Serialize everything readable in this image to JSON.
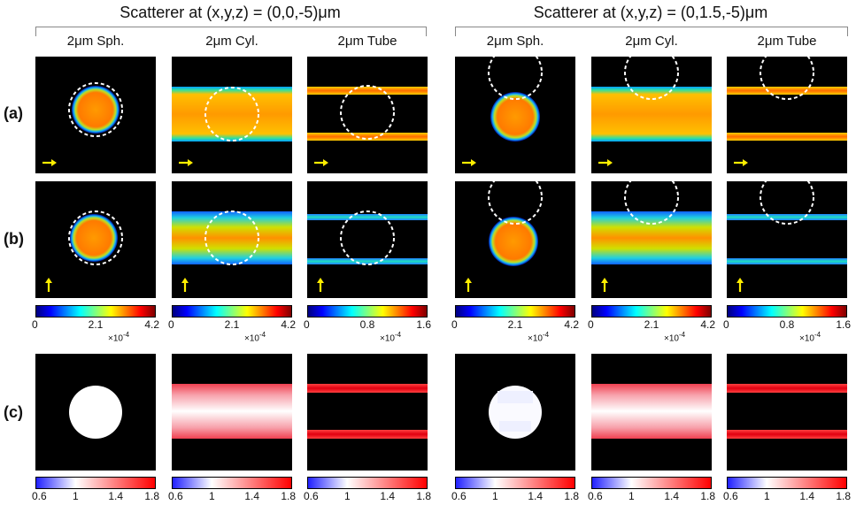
{
  "groups": [
    {
      "title": "Scatterer at (x,y,z) = (0,0,-5)μm"
    },
    {
      "title": "Scatterer at (x,y,z) = (0,1.5,-5)μm"
    }
  ],
  "columns": [
    "2μm Sph.",
    "2μm Cyl.",
    "2μm Tube",
    "2μm Sph.",
    "2μm Cyl.",
    "2μm Tube"
  ],
  "rows": [
    "(a)",
    "(b)",
    "(c)"
  ],
  "jet_colorbars": [
    {
      "ticks": [
        "0",
        "2.1",
        "4.2"
      ],
      "multiplier": "×10",
      "exp": "-4"
    },
    {
      "ticks": [
        "0",
        "2.1",
        "4.2"
      ],
      "multiplier": "×10",
      "exp": "-4"
    },
    {
      "ticks": [
        "0",
        "0.8",
        "1.6"
      ],
      "multiplier": "×10",
      "exp": "-4"
    },
    {
      "ticks": [
        "0",
        "2.1",
        "4.2"
      ],
      "multiplier": "×10",
      "exp": "-4"
    },
    {
      "ticks": [
        "0",
        "2.1",
        "4.2"
      ],
      "multiplier": "×10",
      "exp": "-4"
    },
    {
      "ticks": [
        "0",
        "0.8",
        "1.6"
      ],
      "multiplier": "×10",
      "exp": "-4"
    }
  ],
  "ratio_colorbars": [
    {
      "ticks": [
        "0.6",
        "1",
        "1.4",
        "1.8"
      ]
    },
    {
      "ticks": [
        "0.6",
        "1",
        "1.4",
        "1.8"
      ]
    },
    {
      "ticks": [
        "0.6",
        "1",
        "1.4",
        "1.8"
      ]
    },
    {
      "ticks": [
        "0.6",
        "1",
        "1.4",
        "1.8"
      ]
    },
    {
      "ticks": [
        "0.6",
        "1",
        "1.4",
        "1.8"
      ]
    },
    {
      "ticks": [
        "0.6",
        "1",
        "1.4",
        "1.8"
      ]
    }
  ],
  "arrows": {
    "row_a": "right-arrow-icon",
    "row_b": "up-arrow-icon",
    "color": "#ffee00"
  },
  "colors": {
    "panel_bg": "#000000",
    "dashed_circle": "#ffffff"
  }
}
